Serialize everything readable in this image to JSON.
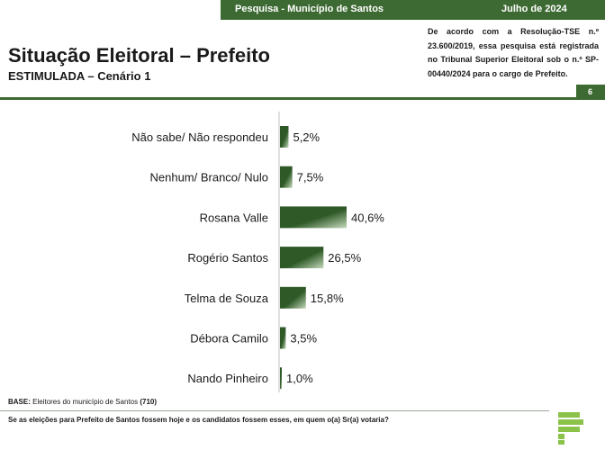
{
  "header": {
    "survey_label": "Pesquisa - Município de Santos",
    "date": "Julho de 2024",
    "registration_text": "De acordo com a Resolução-TSE n.º 23.600/2019, essa pesquisa está registrada no Tribunal Superior Eleitoral sob o n.º SP-00440/2024 para o cargo de Prefeito.",
    "page_number": "6"
  },
  "title": "Situação Eleitoral – Prefeito",
  "subtitle": "ESTIMULADA – Cenário 1",
  "base": {
    "label": "BASE:",
    "text": "Eleitores do município de Santos",
    "count": "(710)"
  },
  "question": "Se as eleições para Prefeito de Santos fossem hoje e os candidatos fossem esses, em quem o(a) Sr(a) votaria?",
  "colors": {
    "brand": "#3d6a32",
    "bar_dark": "#2f5a28",
    "bar_light": "#c4d9bb"
  },
  "chart_data": {
    "type": "bar",
    "orientation": "horizontal",
    "categories": [
      "Não sabe/ Não respondeu",
      "Nenhum/ Branco/ Nulo",
      "Rosana Valle",
      "Rogério Santos",
      "Telma de Souza",
      "Débora Camilo",
      "Nando Pinheiro"
    ],
    "values": [
      5.2,
      7.5,
      40.6,
      26.5,
      15.8,
      3.5,
      1.0
    ],
    "value_labels": [
      "5,2%",
      "7,5%",
      "40,6%",
      "26,5%",
      "15,8%",
      "3,5%",
      "1,0%"
    ],
    "title": "",
    "xlabel": "",
    "ylabel": "",
    "xlim": [
      0,
      40.6
    ],
    "grid": false,
    "legend": "none"
  }
}
